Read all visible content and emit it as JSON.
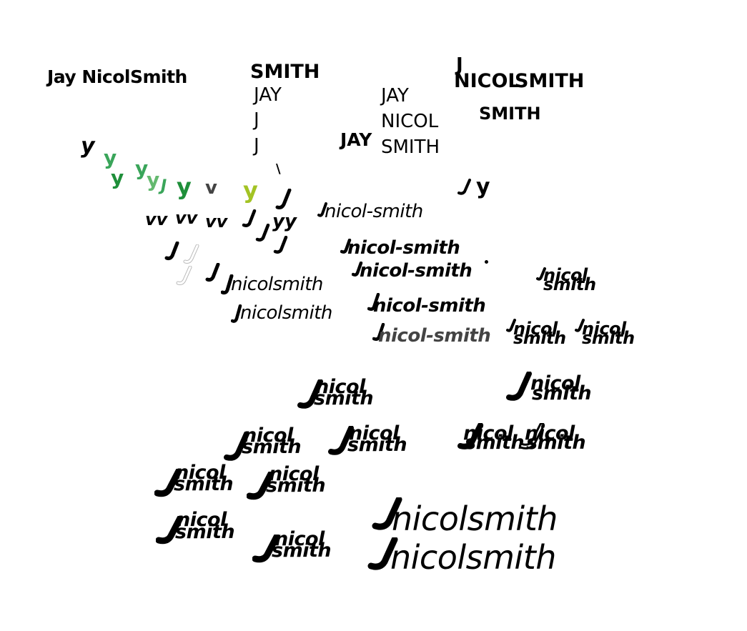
{
  "title_name": "Jay NicolSmith",
  "stack_a": [
    "SMITH",
    "JAY",
    "J",
    "J"
  ],
  "stack_b": [
    "JAY",
    "NICOL",
    "SMITH"
  ],
  "stack_b_side": "JAY",
  "stack_c": [
    "J",
    "NICOL",
    "SMITH",
    "SMITH"
  ],
  "glyph_y": "y",
  "glyph_v": "v",
  "glyph_yy": "yy",
  "wordmark_hyphen": "nicol-smith",
  "wordmark_solid": "nicolsmith",
  "wordmark_nicol": "nicol",
  "wordmark_smith": "smith",
  "colors": {
    "green_dark": "#1f8f3a",
    "green_mid": "#3aa55a",
    "green_light": "#64b96f",
    "lime": "#a3c324",
    "gray": "#444444"
  }
}
